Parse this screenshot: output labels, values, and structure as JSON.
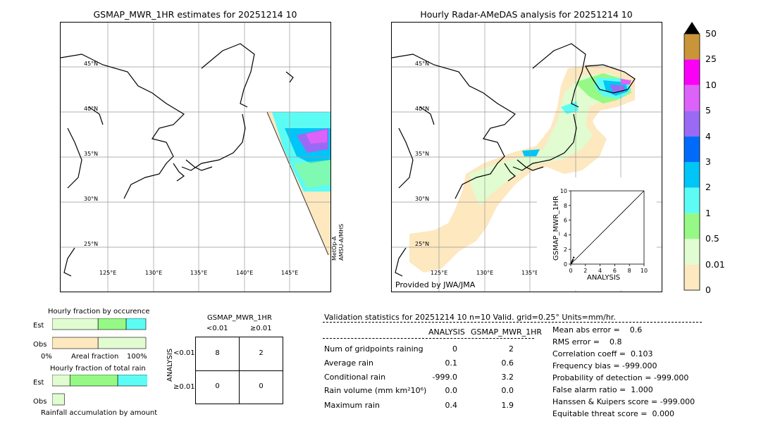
{
  "left_map": {
    "title": "GSMAP_MWR_1HR estimates for 20251214 10",
    "lat_labels": [
      "45°N",
      "40°N",
      "35°N",
      "30°N",
      "25°N"
    ],
    "lon_labels": [
      "125°E",
      "130°E",
      "135°E",
      "140°E",
      "145°E"
    ],
    "side_label_1": "MetOp-A",
    "side_label_2": "AMSU-A/MHS"
  },
  "right_map": {
    "title": "Hourly Radar-AMeDAS analysis for 20251214 10",
    "lat_labels": [
      "45°N",
      "40°N",
      "35°N",
      "30°N",
      "25°N"
    ],
    "lon_labels": [
      "125°E",
      "130°E",
      "135°E"
    ],
    "credit": "Provided by JWA/JMA"
  },
  "colorbar": {
    "labels": [
      "0",
      "0.01",
      "0.5",
      "1",
      "2",
      "3",
      "4",
      "5",
      "10",
      "25",
      "50"
    ],
    "colors": [
      "#fde8c0",
      "#e0fcd0",
      "#96f986",
      "#5cfcf5",
      "#00c5f7",
      "#006bfb",
      "#9b6af5",
      "#dd62fa",
      "#fb00f7",
      "#ca9438"
    ]
  },
  "chart_data": [
    {
      "type": "scatter",
      "title": "",
      "xlabel": "ANALYSIS",
      "ylabel": "GSMAP_MWR_1HR",
      "xlim": [
        0,
        10
      ],
      "ylim": [
        0,
        10
      ],
      "xticks": [
        "0",
        "2",
        "4",
        "6",
        "8",
        "10"
      ],
      "yticks": [
        "0",
        "2",
        "4",
        "6",
        "8",
        "10"
      ],
      "points": [
        {
          "x": 0.1,
          "y": 0.2
        },
        {
          "x": 0.2,
          "y": 0.4
        },
        {
          "x": 0.3,
          "y": 0.6
        },
        {
          "x": 0.1,
          "y": 0.1
        },
        {
          "x": 0.4,
          "y": 0.9
        }
      ]
    },
    {
      "type": "bar",
      "title": "Hourly fraction by occurence",
      "rows": [
        "Est",
        "Obs"
      ],
      "xlabel": "Areal fraction",
      "x_left": "0%",
      "x_right": "100%",
      "segments": [
        [
          {
            "color": "#e0fcd0",
            "value": 0.49
          },
          {
            "color": "#96f986",
            "value": 0.3
          },
          {
            "color": "#5cfcf5",
            "value": 0.21
          }
        ],
        [
          {
            "color": "#fde8c0",
            "value": 0.49
          },
          {
            "color": "#e0fcd0",
            "value": 0.51
          }
        ]
      ]
    },
    {
      "type": "bar",
      "title": "Hourly fraction of total rain",
      "rows": [
        "Est",
        "Obs"
      ],
      "footer": "Rainfall accumulation by amount",
      "segments": [
        [
          {
            "color": "#e0fcd0",
            "value": 0.19
          },
          {
            "color": "#96f986",
            "value": 0.51
          },
          {
            "color": "#5cfcf5",
            "value": 0.49
          }
        ],
        [
          {
            "color": "#e0fcd0",
            "value": 0.13
          }
        ]
      ]
    }
  ],
  "contingency": {
    "title": "GSMAP_MWR_1HR",
    "col_lt": "<0.01",
    "col_ge": "≥0.01",
    "row_lt": "<0.01",
    "row_ge": "≥0.01",
    "ylabel": "ANALYSIS",
    "cells": [
      "8",
      "2",
      "0",
      "0"
    ]
  },
  "validation": {
    "header": "Validation statistics for 20251214 10  n=10 Valid. grid=0.25° Units=mm/hr.",
    "col_analysis": "ANALYSIS",
    "col_gsmap": "GSMAP_MWR_1HR",
    "rows": [
      {
        "label": "Num of gridpoints raining",
        "a": "0",
        "g": "2"
      },
      {
        "label": "Average rain",
        "a": "0.1",
        "g": "0.6"
      },
      {
        "label": "Conditional rain",
        "a": "-999.0",
        "g": "3.2"
      },
      {
        "label": "Rain volume (mm km²10⁶)",
        "a": "0.0",
        "g": "0.0"
      },
      {
        "label": "Maximum rain",
        "a": "0.4",
        "g": "1.9"
      }
    ],
    "scores": [
      "Mean abs error =    0.6",
      "RMS error =    0.8",
      "Correlation coeff =  0.103",
      "Frequency bias = -999.000",
      "Probability of detection = -999.000",
      "False alarm ratio =  1.000",
      "Hanssen & Kuipers score = -999.000",
      "Equitable threat score =  0.000"
    ]
  }
}
